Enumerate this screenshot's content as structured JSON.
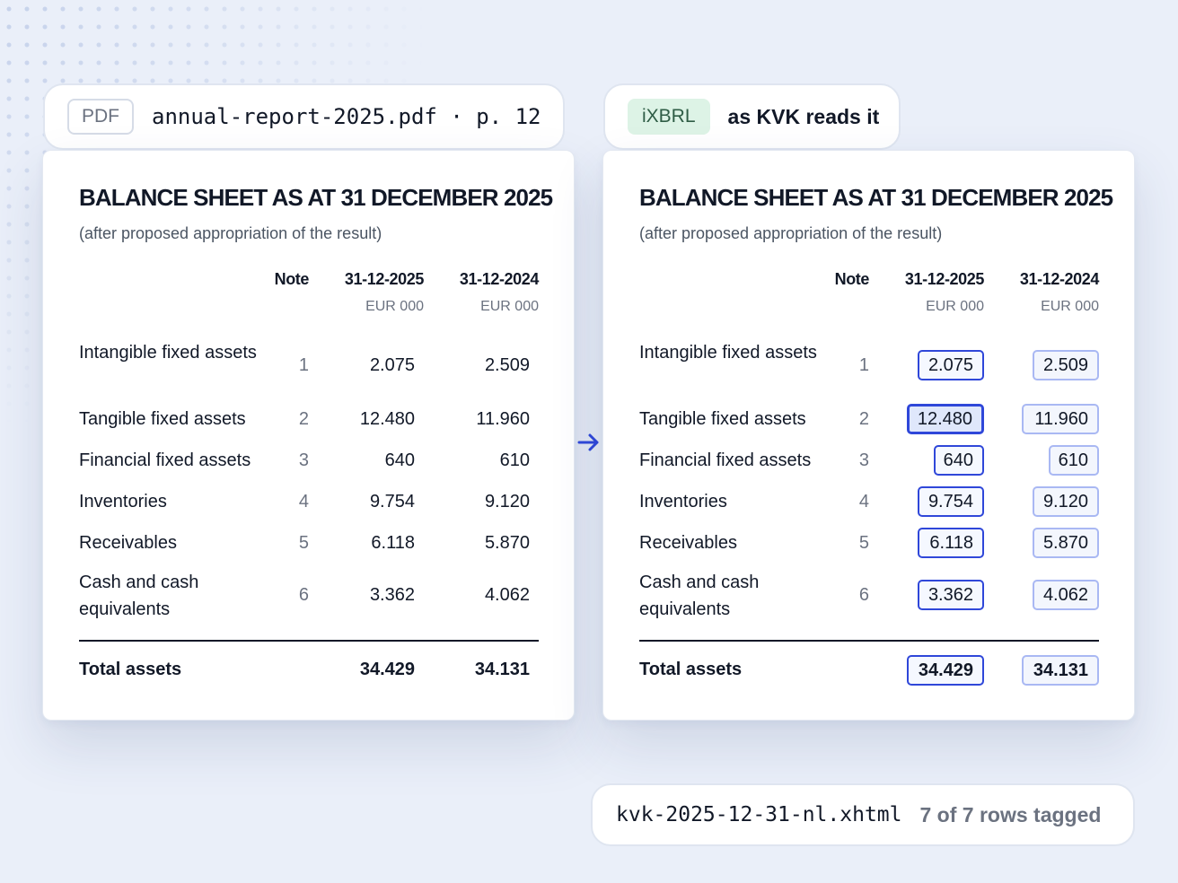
{
  "source_pill": {
    "tag": "PDF",
    "filename": "annual-report-2025.pdf · p. 12"
  },
  "target_pill": {
    "tag": "iXBRL",
    "caption": "as KVK reads it"
  },
  "footer_pill": {
    "filename": "kvk-2025-12-31-nl.xhtml",
    "status": "7 of 7 rows tagged"
  },
  "sheet": {
    "title": "BALANCE SHEET AS AT 31 DECEMBER 2025",
    "subtitle": "(after proposed appropriation of the result)",
    "headers": {
      "note": "Note",
      "current": "31-12-2025",
      "previous": "31-12-2024"
    },
    "units": {
      "current": "EUR 000",
      "previous": "EUR 000"
    },
    "rows": [
      {
        "label": "Intangible fixed assets",
        "note": "1",
        "current": "2.075",
        "previous": "2.509"
      },
      {
        "label": "Tangible fixed assets",
        "note": "2",
        "current": "12.480",
        "previous": "11.960"
      },
      {
        "label": "Financial fixed assets",
        "note": "3",
        "current": "640",
        "previous": "610"
      },
      {
        "label": "Inventories",
        "note": "4",
        "current": "9.754",
        "previous": "9.120"
      },
      {
        "label": "Receivables",
        "note": "5",
        "current": "6.118",
        "previous": "5.870"
      },
      {
        "label": "Cash and cash equivalents",
        "note": "6",
        "current": "3.362",
        "previous": "4.062"
      }
    ],
    "total": {
      "label": "Total assets",
      "current": "34.429",
      "previous": "34.131"
    }
  },
  "icons": {
    "arrow": "arrow-right-icon"
  },
  "colors": {
    "tag_accent": "#2f47d9",
    "ixbrl_badge": "#ddf3e6"
  }
}
